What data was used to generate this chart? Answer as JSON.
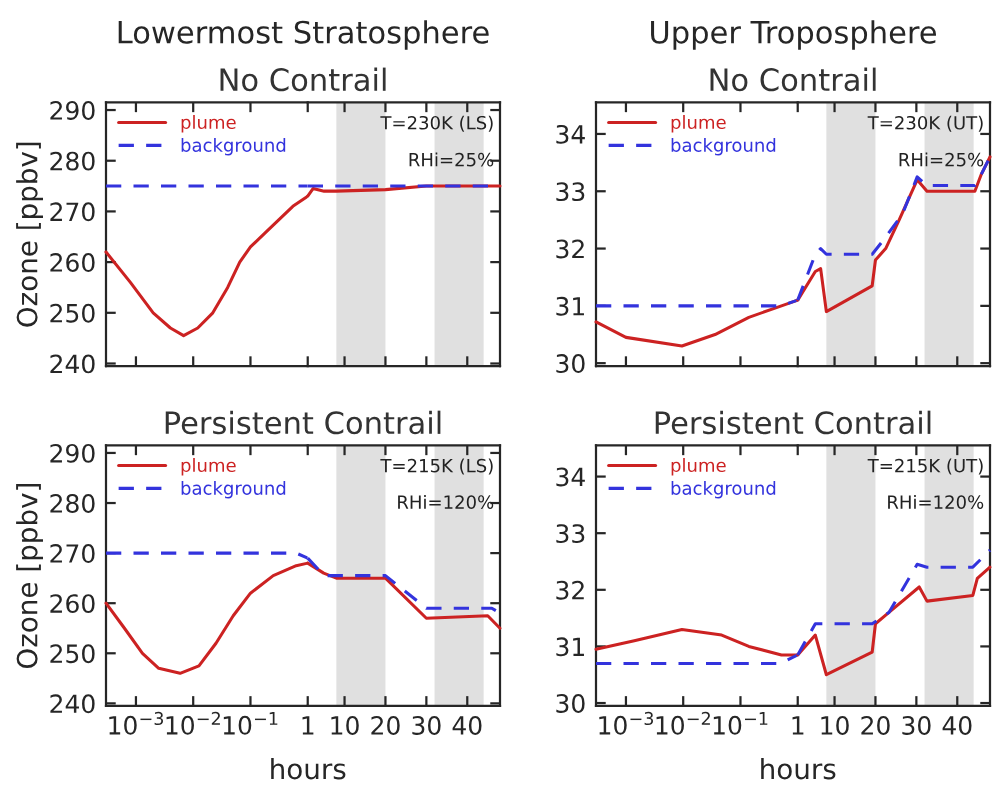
{
  "chart_data": [
    {
      "type": "line",
      "title": "Lowermost Stratosphere",
      "subtitle": "No Contrail",
      "ylabel": "Ozone [ppbv]",
      "log": "x",
      "xlim": [
        0.0003,
        1
      ],
      "xticks": [
        0.001,
        0.01,
        0.1
      ],
      "ylim": [
        239.5,
        291.5
      ],
      "yticks": [
        240,
        250,
        260,
        270,
        280,
        290
      ],
      "tick_labels": "y",
      "legend": "top left",
      "series": [
        {
          "name": "plume",
          "color": "#cc2222",
          "line_style": "solid",
          "x": [
            0.0003,
            0.0008,
            0.002,
            0.004,
            0.0068,
            0.012,
            0.022,
            0.04,
            0.065,
            0.1,
            0.19,
            0.55,
            1
          ],
          "values": [
            262,
            256,
            250,
            247,
            245.5,
            247,
            250,
            255,
            260,
            263,
            266,
            271,
            273
          ]
        },
        {
          "name": "background",
          "color": "#3333dd",
          "line_style": "dashed",
          "x": [
            0.0003,
            1
          ],
          "values": [
            275,
            275
          ]
        }
      ]
    },
    {
      "type": "line",
      "xlim": [
        1,
        48
      ],
      "xticks": [
        1,
        10,
        20,
        30,
        40
      ],
      "ylim": [
        239.5,
        291.5
      ],
      "yticks": [
        240,
        250,
        260,
        270,
        280,
        290
      ],
      "tick_labels": false,
      "annotations": [
        "T=230K (LS)",
        "RHi=25%"
      ],
      "bands": [
        {
          "axis": "x",
          "from": 8,
          "to": 20,
          "color": "#e0e0e0"
        },
        {
          "axis": "x",
          "from": 32,
          "to": 44,
          "color": "#e0e0e0"
        }
      ],
      "series": [
        {
          "color": "#cc2222",
          "line_style": "solid",
          "x": [
            1,
            2.3,
            5,
            8,
            20,
            30,
            44,
            48
          ],
          "values": [
            273,
            274.5,
            274,
            274,
            274.3,
            275,
            275,
            275
          ]
        },
        {
          "color": "#3333dd",
          "line_style": "dashed",
          "x": [
            1,
            8,
            20,
            30,
            48
          ],
          "values": [
            275,
            275,
            275,
            275,
            275
          ]
        }
      ]
    },
    {
      "type": "line",
      "title": "Upper Troposphere",
      "subtitle": "No Contrail",
      "log": "x",
      "xlim": [
        0.0003,
        1
      ],
      "xticks": [
        0.001,
        0.01,
        0.1
      ],
      "ylim": [
        29.95,
        34.55
      ],
      "yticks": [
        30,
        31,
        32,
        33,
        34
      ],
      "tick_labels": "y",
      "legend": "top left",
      "series": [
        {
          "name": "plume",
          "color": "#cc2222",
          "line_style": "solid",
          "x": [
            0.0003,
            0.001,
            0.0095,
            0.036,
            0.14,
            0.52,
            1
          ],
          "values": [
            30.72,
            30.45,
            30.3,
            30.5,
            30.8,
            31.0,
            31.1
          ]
        },
        {
          "name": "background",
          "color": "#3333dd",
          "line_style": "dashed",
          "x": [
            0.0003,
            0.5,
            1
          ],
          "values": [
            31.0,
            31.0,
            31.1
          ]
        }
      ]
    },
    {
      "type": "line",
      "xlim": [
        1,
        48
      ],
      "xticks": [
        1,
        10,
        20,
        30,
        40
      ],
      "ylim": [
        29.95,
        34.55
      ],
      "yticks": [
        30,
        31,
        32,
        33,
        34
      ],
      "tick_labels": false,
      "annotations": [
        "T=230K (UT)",
        "RHi=25%"
      ],
      "bands": [
        {
          "axis": "x",
          "from": 8,
          "to": 20,
          "color": "#e0e0e0"
        },
        {
          "axis": "x",
          "from": 32,
          "to": 44,
          "color": "#e0e0e0"
        }
      ],
      "series": [
        {
          "color": "#cc2222",
          "line_style": "solid",
          "x": [
            1,
            5.3,
            6.6,
            8,
            19.2,
            20,
            22.5,
            25.8,
            30.2,
            32.6,
            44.3,
            45.9,
            48
          ],
          "values": [
            31.1,
            31.6,
            31.65,
            30.9,
            31.35,
            31.8,
            32.0,
            32.5,
            33.2,
            33.0,
            33.0,
            33.3,
            33.6
          ]
        },
        {
          "color": "#3333dd",
          "line_style": "dashed",
          "x": [
            1,
            5.3,
            6.6,
            8,
            19.2,
            22.5,
            26.6,
            30.2,
            32.6,
            44.3,
            45.9,
            48
          ],
          "values": [
            31.1,
            31.9,
            32.0,
            31.9,
            31.9,
            32.2,
            32.6,
            33.25,
            33.1,
            33.1,
            33.3,
            33.6
          ]
        }
      ]
    },
    {
      "type": "line",
      "title": "Persistent Contrail",
      "ylabel": "Ozone [ppbv]",
      "log": "x",
      "xlim": [
        0.0003,
        1
      ],
      "xticks": [
        {
          "value": 0.001,
          "label": "10$^{−3}$"
        },
        {
          "value": 0.01,
          "label": "10$^{−2}$"
        },
        {
          "value": 0.1,
          "label": "10$^{−1}$"
        }
      ],
      "ylim": [
        239.5,
        291.5
      ],
      "yticks": [
        240,
        250,
        260,
        270,
        280,
        290
      ],
      "legend": "top left",
      "series": [
        {
          "name": "plume",
          "color": "#cc2222",
          "line_style": "solid",
          "x": [
            0.0003,
            0.00063,
            0.0013,
            0.0025,
            0.0059,
            0.0126,
            0.025,
            0.05,
            0.1,
            0.25,
            0.63,
            1
          ],
          "values": [
            260,
            255,
            250,
            247,
            246,
            247.5,
            252,
            257.5,
            262,
            265.5,
            267.5,
            268
          ]
        },
        {
          "name": "background",
          "color": "#3333dd",
          "line_style": "dashed",
          "x": [
            0.0003,
            0.63,
            1
          ],
          "values": [
            270,
            270,
            269
          ]
        }
      ]
    },
    {
      "type": "line",
      "xlabel": "hours",
      "xlim": [
        1,
        48
      ],
      "xticks": [
        1,
        10,
        20,
        30,
        40
      ],
      "ylim": [
        239.5,
        291.5
      ],
      "yticks": [
        240,
        250,
        260,
        270,
        280,
        290
      ],
      "tick_labels": "x",
      "annotations": [
        "T=215K (LS)",
        "RHi=120%"
      ],
      "bands": [
        {
          "axis": "x",
          "from": 8,
          "to": 20,
          "color": "#e0e0e0"
        },
        {
          "axis": "x",
          "from": 32,
          "to": 44,
          "color": "#e0e0e0"
        }
      ],
      "series": [
        {
          "color": "#cc2222",
          "line_style": "solid",
          "x": [
            1,
            4.9,
            8,
            20,
            30,
            45,
            48
          ],
          "values": [
            268,
            266,
            265,
            265,
            257,
            257.5,
            255
          ]
        },
        {
          "color": "#3333dd",
          "line_style": "dashed",
          "x": [
            1,
            5,
            8,
            20,
            30,
            46,
            48
          ],
          "values": [
            269,
            265.5,
            265.5,
            265.5,
            259,
            259,
            258
          ]
        }
      ]
    },
    {
      "type": "line",
      "title": "Persistent Contrail",
      "log": "x",
      "xlim": [
        0.0003,
        1
      ],
      "xticks": [
        {
          "value": 0.001,
          "label": "10$^{−3}$"
        },
        {
          "value": 0.01,
          "label": "10$^{−2}$"
        },
        {
          "value": 0.1,
          "label": "10$^{−1}$"
        }
      ],
      "ylim": [
        29.95,
        34.55
      ],
      "yticks": [
        30,
        31,
        32,
        33,
        34
      ],
      "legend": "top left",
      "series": [
        {
          "name": "plume",
          "color": "#cc2222",
          "line_style": "solid",
          "x": [
            0.0003,
            0.0014,
            0.0095,
            0.047,
            0.14,
            0.52,
            1
          ],
          "values": [
            30.95,
            31.1,
            31.3,
            31.2,
            31.0,
            30.85,
            30.85
          ]
        },
        {
          "name": "background",
          "color": "#3333dd",
          "line_style": "dashed",
          "x": [
            0.0003,
            0.5,
            1
          ],
          "values": [
            30.7,
            30.7,
            30.85
          ]
        }
      ]
    },
    {
      "type": "line",
      "xlabel": "hours",
      "xlim": [
        1,
        48
      ],
      "xticks": [
        1,
        10,
        20,
        30,
        40
      ],
      "ylim": [
        29.95,
        34.55
      ],
      "yticks": [
        30,
        31,
        32,
        33,
        34
      ],
      "tick_labels": "x",
      "annotations": [
        "T=215K (UT)",
        "RHi=120%"
      ],
      "bands": [
        {
          "axis": "x",
          "from": 8,
          "to": 20,
          "color": "#e0e0e0"
        },
        {
          "axis": "x",
          "from": 32,
          "to": 44,
          "color": "#e0e0e0"
        }
      ],
      "series": [
        {
          "color": "#cc2222",
          "line_style": "solid",
          "x": [
            1,
            5.3,
            8,
            19.2,
            20,
            23.3,
            30.7,
            32.6,
            43.8,
            44.9,
            48
          ],
          "values": [
            30.85,
            31.2,
            30.5,
            30.9,
            31.4,
            31.6,
            32.05,
            31.8,
            31.9,
            32.2,
            32.4
          ]
        },
        {
          "color": "#3333dd",
          "line_style": "dashed",
          "x": [
            1,
            5.3,
            19.2,
            23.3,
            30.2,
            32.6,
            43.8,
            48
          ],
          "values": [
            30.85,
            31.4,
            31.4,
            31.6,
            32.45,
            32.4,
            32.4,
            32.7
          ]
        }
      ]
    }
  ]
}
